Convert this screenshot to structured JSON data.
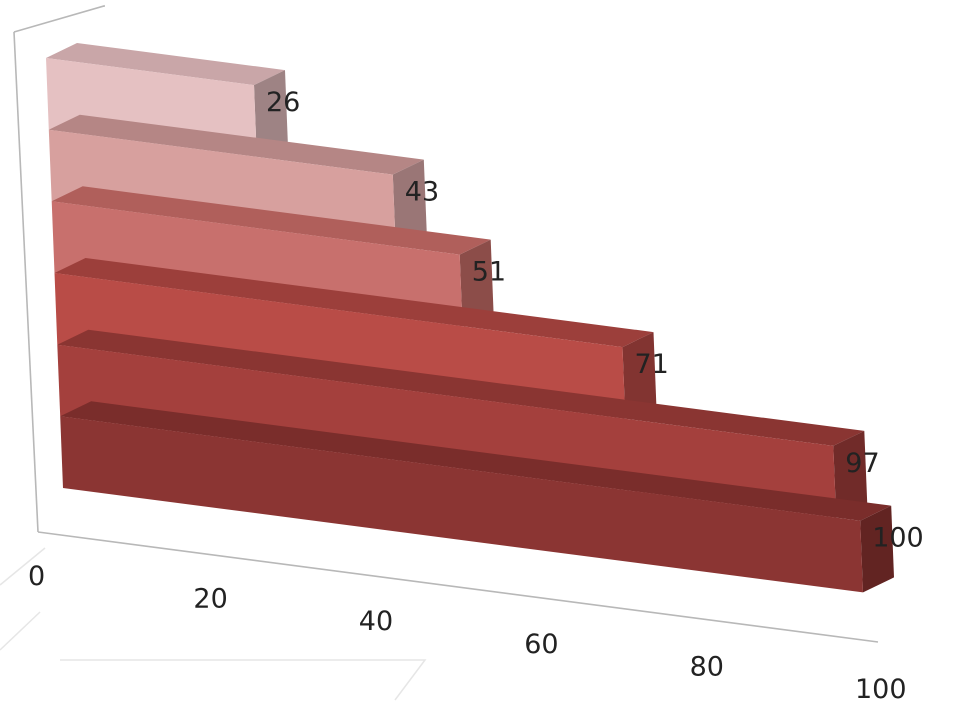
{
  "chart_data": {
    "type": "bar",
    "orientation": "horizontal",
    "style": "3d-stacked-steps",
    "values": [
      26,
      43,
      51,
      71,
      97,
      100
    ],
    "data_labels": [
      "26",
      "43",
      "51",
      "71",
      "97",
      "100"
    ],
    "xlim": [
      0,
      100
    ],
    "x_ticks": [
      0,
      20,
      40,
      60,
      80,
      100
    ],
    "x_tick_labels": [
      "0",
      "20",
      "40",
      "60",
      "80",
      "100"
    ],
    "title": "",
    "xlabel": "",
    "ylabel": "",
    "grid": false,
    "legend": "none",
    "colors": {
      "fronts": [
        "#e5c1c2",
        "#d7a09e",
        "#c8706d",
        "#b94c47",
        "#a4403d",
        "#8b3533"
      ],
      "tops": [
        "#c9a6a8",
        "#b58685",
        "#b05f5b",
        "#9c3f3b",
        "#8a3532",
        "#7a2d2b"
      ],
      "sides": [
        "#9e8384",
        "#9a7676",
        "#8c4d49",
        "#823431",
        "#712b29",
        "#622422"
      ]
    }
  }
}
